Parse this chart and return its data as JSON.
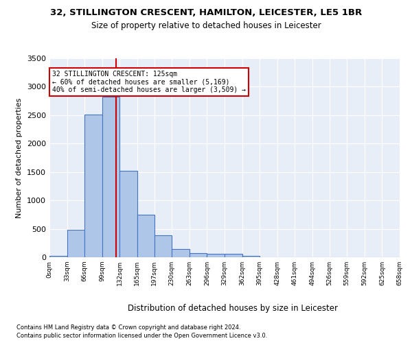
{
  "title1": "32, STILLINGTON CRESCENT, HAMILTON, LEICESTER, LE5 1BR",
  "title2": "Size of property relative to detached houses in Leicester",
  "xlabel": "Distribution of detached houses by size in Leicester",
  "ylabel": "Number of detached properties",
  "footnote1": "Contains HM Land Registry data © Crown copyright and database right 2024.",
  "footnote2": "Contains public sector information licensed under the Open Government Licence v3.0.",
  "bar_values": [
    25,
    480,
    2510,
    2820,
    1520,
    750,
    390,
    145,
    75,
    60,
    55,
    30,
    5,
    0,
    0,
    0,
    0,
    0,
    0,
    0
  ],
  "bin_edges": [
    0,
    33,
    66,
    99,
    132,
    165,
    197,
    230,
    263,
    296,
    329,
    362,
    395,
    428,
    461,
    494,
    526,
    559,
    592,
    625,
    658
  ],
  "tick_labels": [
    "0sqm",
    "33sqm",
    "66sqm",
    "99sqm",
    "132sqm",
    "165sqm",
    "197sqm",
    "230sqm",
    "263sqm",
    "296sqm",
    "329sqm",
    "362sqm",
    "395sqm",
    "428sqm",
    "461sqm",
    "494sqm",
    "526sqm",
    "559sqm",
    "592sqm",
    "625sqm",
    "658sqm"
  ],
  "bar_color": "#aec6e8",
  "bar_edge_color": "#4472c4",
  "bg_color": "#e8eef8",
  "grid_color": "#ffffff",
  "vline_x": 125,
  "vline_color": "#cc0000",
  "annotation_text": "32 STILLINGTON CRESCENT: 125sqm\n← 60% of detached houses are smaller (5,169)\n40% of semi-detached houses are larger (3,509) →",
  "annotation_box_color": "#cc0000",
  "ylim": [
    0,
    3500
  ],
  "yticks": [
    0,
    500,
    1000,
    1500,
    2000,
    2500,
    3000,
    3500
  ]
}
